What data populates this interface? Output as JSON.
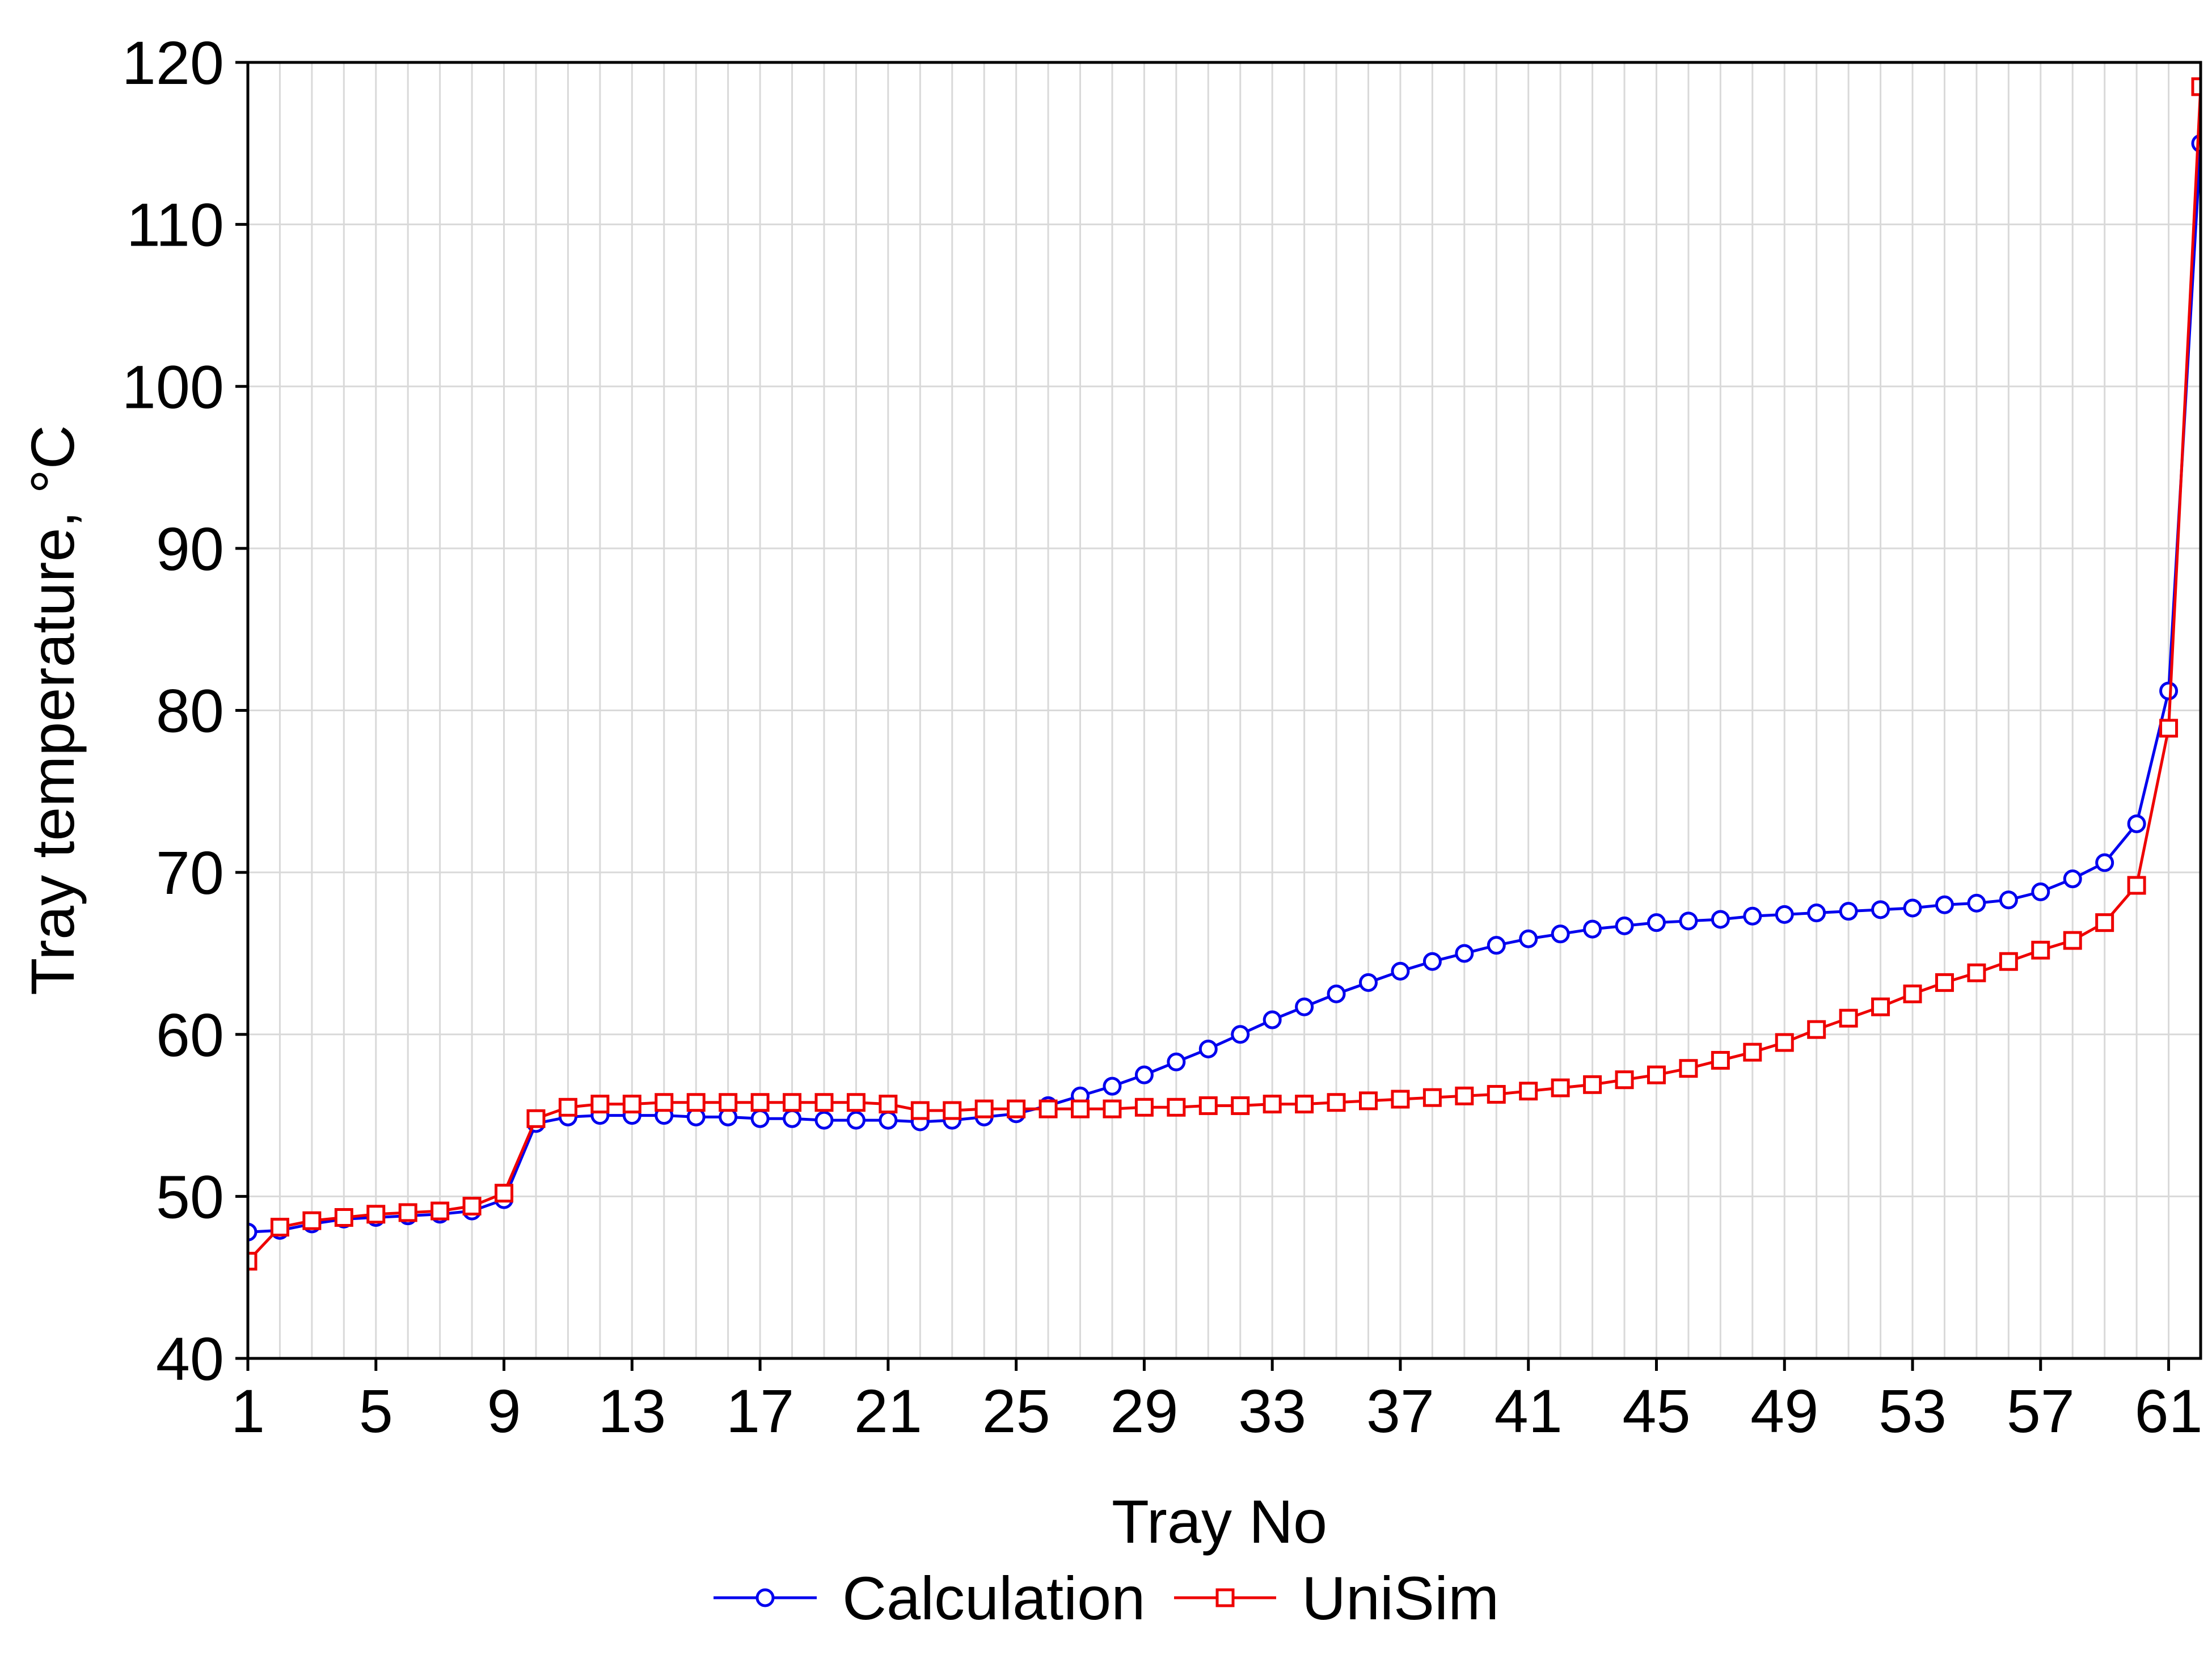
{
  "chart_data": {
    "type": "line",
    "xlabel": "Tray No",
    "ylabel": "Tray temperature, °C",
    "xlim": [
      1,
      62
    ],
    "ylim": [
      40,
      120
    ],
    "x_ticks": [
      1,
      5,
      9,
      13,
      17,
      21,
      25,
      29,
      33,
      37,
      41,
      45,
      49,
      53,
      57,
      61
    ],
    "y_ticks": [
      40,
      50,
      60,
      70,
      80,
      90,
      100,
      110,
      120
    ],
    "grid": true,
    "legend_position": "bottom",
    "x": [
      1,
      2,
      3,
      4,
      5,
      6,
      7,
      8,
      9,
      10,
      11,
      12,
      13,
      14,
      15,
      16,
      17,
      18,
      19,
      20,
      21,
      22,
      23,
      24,
      25,
      26,
      27,
      28,
      29,
      30,
      31,
      32,
      33,
      34,
      35,
      36,
      37,
      38,
      39,
      40,
      41,
      42,
      43,
      44,
      45,
      46,
      47,
      48,
      49,
      50,
      51,
      52,
      53,
      54,
      55,
      56,
      57,
      58,
      59,
      60,
      61,
      62
    ],
    "series": [
      {
        "name": "Calculation",
        "color": "#0000ee",
        "marker": "circle",
        "values": [
          47.8,
          47.9,
          48.3,
          48.6,
          48.7,
          48.8,
          48.9,
          49.1,
          49.8,
          54.5,
          54.9,
          55.0,
          55.0,
          55.0,
          54.9,
          54.9,
          54.8,
          54.8,
          54.7,
          54.7,
          54.7,
          54.6,
          54.7,
          54.9,
          55.1,
          55.6,
          56.2,
          56.8,
          57.5,
          58.3,
          59.1,
          60.0,
          60.9,
          61.7,
          62.5,
          63.2,
          63.9,
          64.5,
          65.0,
          65.5,
          65.9,
          66.2,
          66.5,
          66.7,
          66.9,
          67.0,
          67.1,
          67.3,
          67.4,
          67.5,
          67.6,
          67.7,
          67.8,
          68.0,
          68.1,
          68.3,
          68.8,
          69.6,
          70.6,
          73.0,
          81.2,
          115.0
        ]
      },
      {
        "name": "UniSim",
        "color": "#ee0000",
        "marker": "square",
        "values": [
          46.0,
          48.1,
          48.5,
          48.7,
          48.9,
          49.0,
          49.1,
          49.4,
          50.2,
          54.8,
          55.5,
          55.7,
          55.7,
          55.8,
          55.8,
          55.8,
          55.8,
          55.8,
          55.8,
          55.8,
          55.7,
          55.3,
          55.3,
          55.4,
          55.4,
          55.4,
          55.4,
          55.4,
          55.5,
          55.5,
          55.6,
          55.6,
          55.7,
          55.7,
          55.8,
          55.9,
          56.0,
          56.1,
          56.2,
          56.3,
          56.5,
          56.7,
          56.9,
          57.2,
          57.5,
          57.9,
          58.4,
          58.9,
          59.5,
          60.3,
          61.0,
          61.7,
          62.5,
          63.2,
          63.8,
          64.5,
          65.2,
          65.8,
          66.9,
          69.2,
          78.9,
          118.5
        ]
      }
    ]
  }
}
